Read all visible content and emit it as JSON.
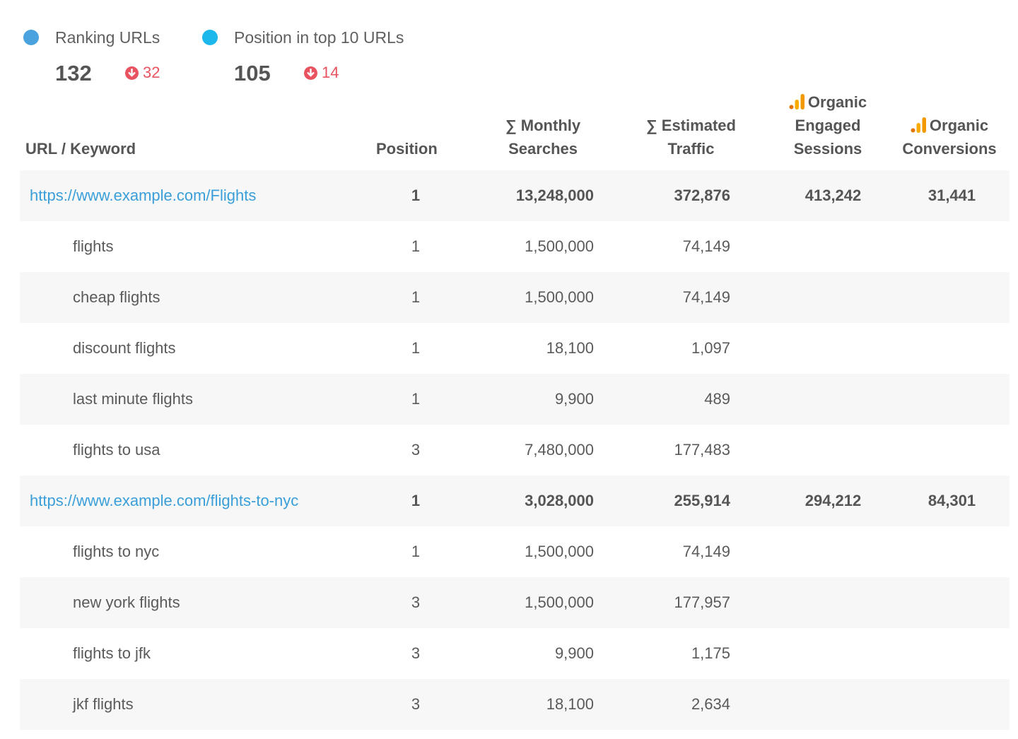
{
  "summary": {
    "ranking_urls": {
      "label": "Ranking URLs",
      "value": "132",
      "change": "32",
      "dot_color": "#4aa3df",
      "change_icon": "arrow-down-circle-icon"
    },
    "top10_urls": {
      "label": "Position in top 10 URLs",
      "value": "105",
      "change": "14",
      "dot_color": "#1cb8ec",
      "change_icon": "arrow-down-circle-icon"
    }
  },
  "colors": {
    "link": "#3a9fd9",
    "negative": "#e8535f",
    "row_shade": "#f7f7f7",
    "ga_icon": "#f29900"
  },
  "table": {
    "headers": {
      "url_keyword": "URL / Keyword",
      "position": "Position",
      "monthly_searches_1": "∑ Monthly",
      "monthly_searches_2": "Searches",
      "estimated_traffic_1": "∑ Estimated",
      "estimated_traffic_2": "Traffic",
      "engaged_sessions_1": "Organic",
      "engaged_sessions_2": "Engaged",
      "engaged_sessions_3": "Sessions",
      "conversions_1": "Organic",
      "conversions_2": "Conversions",
      "ga_icon": "google-analytics-icon"
    },
    "rows": [
      {
        "type": "url",
        "label": "https://www.example.com/Flights",
        "position": "1",
        "monthly_searches": "13,248,000",
        "estimated_traffic": "372,876",
        "engaged_sessions": "413,242",
        "conversions": "31,441"
      },
      {
        "type": "keyword",
        "label": "flights",
        "position": "1",
        "monthly_searches": "1,500,000",
        "estimated_traffic": "74,149",
        "engaged_sessions": "",
        "conversions": ""
      },
      {
        "type": "keyword",
        "label": "cheap flights",
        "position": "1",
        "monthly_searches": "1,500,000",
        "estimated_traffic": "74,149",
        "engaged_sessions": "",
        "conversions": ""
      },
      {
        "type": "keyword",
        "label": "discount flights",
        "position": "1",
        "monthly_searches": "18,100",
        "estimated_traffic": "1,097",
        "engaged_sessions": "",
        "conversions": ""
      },
      {
        "type": "keyword",
        "label": "last minute flights",
        "position": "1",
        "monthly_searches": "9,900",
        "estimated_traffic": "489",
        "engaged_sessions": "",
        "conversions": ""
      },
      {
        "type": "keyword",
        "label": "flights to usa",
        "position": "3",
        "monthly_searches": "7,480,000",
        "estimated_traffic": "177,483",
        "engaged_sessions": "",
        "conversions": ""
      },
      {
        "type": "url",
        "label": "https://www.example.com/flights-to-nyc",
        "position": "1",
        "monthly_searches": "3,028,000",
        "estimated_traffic": "255,914",
        "engaged_sessions": "294,212",
        "conversions": "84,301"
      },
      {
        "type": "keyword",
        "label": "flights to nyc",
        "position": "1",
        "monthly_searches": "1,500,000",
        "estimated_traffic": "74,149",
        "engaged_sessions": "",
        "conversions": ""
      },
      {
        "type": "keyword",
        "label": "new york flights",
        "position": "3",
        "monthly_searches": "1,500,000",
        "estimated_traffic": "177,957",
        "engaged_sessions": "",
        "conversions": ""
      },
      {
        "type": "keyword",
        "label": "flights to jfk",
        "position": "3",
        "monthly_searches": "9,900",
        "estimated_traffic": "1,175",
        "engaged_sessions": "",
        "conversions": ""
      },
      {
        "type": "keyword",
        "label": "jkf flights",
        "position": "3",
        "monthly_searches": "18,100",
        "estimated_traffic": "2,634",
        "engaged_sessions": "",
        "conversions": ""
      }
    ]
  }
}
